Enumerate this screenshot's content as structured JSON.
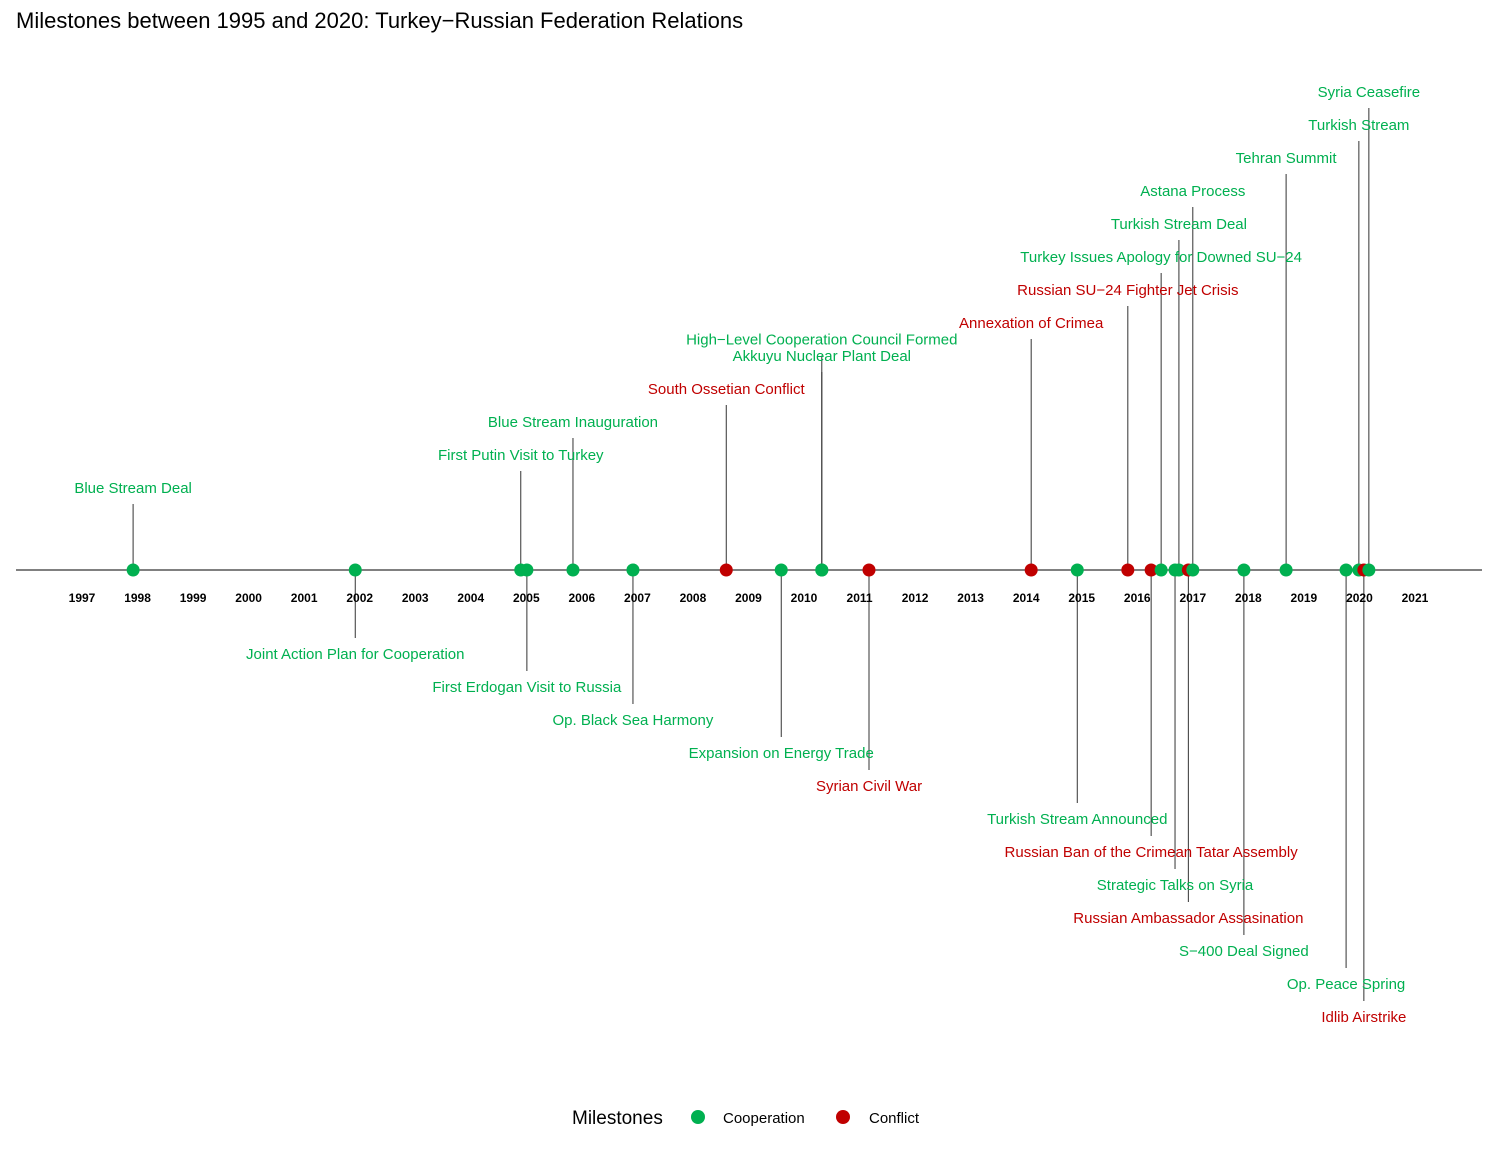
{
  "chart_data": {
    "type": "timeline",
    "title": "Milestones between 1995 and 2020: Turkey−Russian Federation Relations",
    "x_ticks": [
      1997,
      1998,
      1999,
      2000,
      2001,
      2002,
      2003,
      2004,
      2005,
      2006,
      2007,
      2008,
      2009,
      2010,
      2011,
      2012,
      2013,
      2014,
      2015,
      2016,
      2017,
      2018,
      2019,
      2020,
      2021
    ],
    "xlim": [
      1995.9,
      2022.2
    ],
    "legend": {
      "title": "Milestones",
      "position": "bottom",
      "entries": [
        {
          "name": "Cooperation",
          "color": "#00B050"
        },
        {
          "name": "Conflict",
          "color": "#C00000"
        }
      ]
    },
    "events": [
      {
        "label": "Blue Stream Deal",
        "date": 1997.92,
        "type": "Cooperation",
        "position": 1
      },
      {
        "label": "Joint Action Plan for Cooperation",
        "date": 2001.92,
        "type": "Cooperation",
        "position": -1
      },
      {
        "label": "First Putin Visit to Turkey",
        "date": 2004.9,
        "type": "Cooperation",
        "position": 2
      },
      {
        "label": "First Erdogan Visit to Russia",
        "date": 2005.01,
        "type": "Cooperation",
        "position": -2
      },
      {
        "label": "Blue Stream Inauguration",
        "date": 2005.84,
        "type": "Cooperation",
        "position": 3
      },
      {
        "label": "Op. Black Sea Harmony",
        "date": 2006.92,
        "type": "Cooperation",
        "position": -3
      },
      {
        "label": "South Ossetian Conflict",
        "date": 2008.6,
        "type": "Conflict",
        "position": 4
      },
      {
        "label": "Expansion on Energy Trade",
        "date": 2009.59,
        "type": "Cooperation",
        "position": -4
      },
      {
        "label": "Akkuyu Nuclear Plant Deal",
        "date": 2010.32,
        "type": "Cooperation",
        "position": 5
      },
      {
        "label": "High−Level Cooperation Council Formed",
        "date": 2010.32,
        "type": "Cooperation",
        "position": 5.5
      },
      {
        "label": "Syrian Civil War",
        "date": 2011.17,
        "type": "Conflict",
        "position": -5
      },
      {
        "label": "Annexation of Crimea",
        "date": 2014.09,
        "type": "Conflict",
        "position": 6
      },
      {
        "label": "Turkish Stream Announced",
        "date": 2014.92,
        "type": "Cooperation",
        "position": -6
      },
      {
        "label": "Russian SU−24 Fighter Jet Crisis",
        "date": 2015.83,
        "type": "Conflict",
        "position": 7
      },
      {
        "label": "Russian Ban of the Crimean Tatar Assembly",
        "date": 2016.25,
        "type": "Conflict",
        "position": -7
      },
      {
        "label": "Turkey Issues Apology for Downed SU−24",
        "date": 2016.43,
        "type": "Cooperation",
        "position": 8
      },
      {
        "label": "Strategic Talks on Syria",
        "date": 2016.68,
        "type": "Cooperation",
        "position": -8
      },
      {
        "label": "Turkish Stream Deal",
        "date": 2016.75,
        "type": "Cooperation",
        "position": 9
      },
      {
        "label": "Russian Ambassador Assasination",
        "date": 2016.92,
        "type": "Conflict",
        "position": -9
      },
      {
        "label": "Astana Process",
        "date": 2017.0,
        "type": "Cooperation",
        "position": 10
      },
      {
        "label": "S−400 Deal Signed",
        "date": 2017.92,
        "type": "Cooperation",
        "position": -10
      },
      {
        "label": "Tehran Summit",
        "date": 2018.68,
        "type": "Cooperation",
        "position": 11
      },
      {
        "label": "Op. Peace Spring",
        "date": 2019.76,
        "type": "Cooperation",
        "position": -11
      },
      {
        "label": "Turkish Stream",
        "date": 2019.99,
        "type": "Cooperation",
        "position": 12
      },
      {
        "label": "Idlib Airstrike",
        "date": 2020.08,
        "type": "Conflict",
        "position": -12
      },
      {
        "label": "Syria Ceasefire",
        "date": 2020.17,
        "type": "Cooperation",
        "position": 13
      }
    ]
  }
}
